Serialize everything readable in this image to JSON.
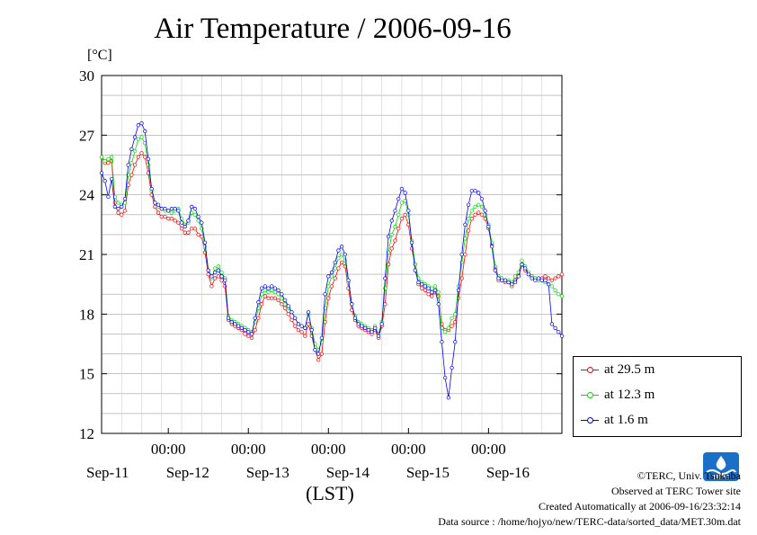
{
  "chart_data": {
    "type": "line",
    "title": "Air Temperature / 2006-09-16",
    "ylabel": "[°C]",
    "xlabel": "(LST)",
    "ylim": [
      12,
      30
    ],
    "y_ticks": [
      12,
      15,
      18,
      21,
      24,
      27,
      30
    ],
    "x_range_hours": [
      0,
      138
    ],
    "x_tick_labels": [
      "00:00",
      "00:00",
      "00:00",
      "00:00",
      "00:00"
    ],
    "x_day_labels": [
      "Sep-11",
      "Sep-12",
      "Sep-13",
      "Sep-14",
      "Sep-15",
      "Sep-16"
    ],
    "grid": true,
    "legend_placement": "bottom-right outside plot",
    "series": [
      {
        "name": "at 29.5 m",
        "color": "#ff0000",
        "x": [
          0,
          1,
          2,
          3,
          4,
          5,
          6,
          7,
          8,
          9,
          10,
          11,
          12,
          13,
          14,
          15,
          16,
          17,
          18,
          19,
          20,
          21,
          22,
          23,
          24,
          25,
          26,
          27,
          28,
          29,
          30,
          31,
          32,
          33,
          34,
          35,
          36,
          37,
          38,
          39,
          40,
          41,
          42,
          43,
          44,
          45,
          46,
          47,
          48,
          49,
          50,
          51,
          52,
          53,
          54,
          55,
          56,
          57,
          58,
          59,
          60,
          61,
          62,
          63,
          64,
          65,
          66,
          67,
          68,
          69,
          70,
          71,
          72,
          73,
          74,
          75,
          76,
          77,
          78,
          79,
          80,
          81,
          82,
          83,
          84,
          85,
          86,
          87,
          88,
          89,
          90,
          91,
          92,
          93,
          94,
          95,
          96,
          97,
          98,
          99,
          100,
          101,
          102,
          103,
          104,
          105,
          106,
          107,
          108,
          109,
          110,
          111,
          112,
          113,
          114,
          115,
          116,
          117,
          118,
          119,
          120,
          121,
          122,
          123,
          124,
          125,
          126,
          127,
          128,
          129,
          130,
          131,
          132,
          133,
          134,
          135,
          136,
          137,
          138
        ],
        "values": [
          25.9,
          25.6,
          25.6,
          25.7,
          23.6,
          23.1,
          23.0,
          23.2,
          24.5,
          25.0,
          25.5,
          25.9,
          26.1,
          25.9,
          25.1,
          24.0,
          23.4,
          23.1,
          22.9,
          22.9,
          22.8,
          22.8,
          22.7,
          22.6,
          22.3,
          22.1,
          22.1,
          22.3,
          22.3,
          22.0,
          21.9,
          21.1,
          20.0,
          19.4,
          19.8,
          19.9,
          19.7,
          19.4,
          17.7,
          17.5,
          17.4,
          17.3,
          17.2,
          17.0,
          16.9,
          16.8,
          17.2,
          17.8,
          18.5,
          18.9,
          18.8,
          18.8,
          18.8,
          18.7,
          18.5,
          18.3,
          18.0,
          17.7,
          17.4,
          17.2,
          17.1,
          16.9,
          17.5,
          16.9,
          16.2,
          15.7,
          16.0,
          17.6,
          18.8,
          19.4,
          19.8,
          20.3,
          20.6,
          20.4,
          19.3,
          18.2,
          17.7,
          17.4,
          17.3,
          17.2,
          17.1,
          17.0,
          17.2,
          16.8,
          17.4,
          18.5,
          20.5,
          21.3,
          21.7,
          22.3,
          22.8,
          23.0,
          22.5,
          21.3,
          20.5,
          19.5,
          19.3,
          19.2,
          19.0,
          18.9,
          19.1,
          18.9,
          17.5,
          17.2,
          17.2,
          17.4,
          17.6,
          18.8,
          19.8,
          21.0,
          22.2,
          22.8,
          23.0,
          23.1,
          23.0,
          22.8,
          22.3,
          21.5,
          20.3,
          19.7,
          19.7,
          19.6,
          19.6,
          19.4,
          19.7,
          20.0,
          20.5,
          20.2,
          20.0,
          19.9,
          19.8,
          19.7,
          19.8,
          19.9,
          19.8,
          19.7,
          19.8,
          19.9,
          20.0
        ]
      },
      {
        "name": "at 12.3 m",
        "color": "#00dd00",
        "x": [
          0,
          1,
          2,
          3,
          4,
          5,
          6,
          7,
          8,
          9,
          10,
          11,
          12,
          13,
          14,
          15,
          16,
          17,
          18,
          19,
          20,
          21,
          22,
          23,
          24,
          25,
          26,
          27,
          28,
          29,
          30,
          31,
          32,
          33,
          34,
          35,
          36,
          37,
          38,
          39,
          40,
          41,
          42,
          43,
          44,
          45,
          46,
          47,
          48,
          49,
          50,
          51,
          52,
          53,
          54,
          55,
          56,
          57,
          58,
          59,
          60,
          61,
          62,
          63,
          64,
          65,
          66,
          67,
          68,
          69,
          70,
          71,
          72,
          73,
          74,
          75,
          76,
          77,
          78,
          79,
          80,
          81,
          82,
          83,
          84,
          85,
          86,
          87,
          88,
          89,
          90,
          91,
          92,
          93,
          94,
          95,
          96,
          97,
          98,
          99,
          100,
          101,
          102,
          103,
          104,
          105,
          106,
          107,
          108,
          109,
          110,
          111,
          112,
          113,
          114,
          115,
          116,
          117,
          118,
          119,
          120,
          121,
          122,
          123,
          124,
          125,
          126,
          127,
          128,
          129,
          130,
          131,
          132,
          133,
          134,
          135,
          136,
          137,
          138
        ],
        "values": [
          25.9,
          25.7,
          25.8,
          25.9,
          23.9,
          23.6,
          23.5,
          23.6,
          25.0,
          25.6,
          26.2,
          26.8,
          26.9,
          26.6,
          25.5,
          24.2,
          23.6,
          23.4,
          23.3,
          23.2,
          23.2,
          23.1,
          23.2,
          23.3,
          22.8,
          22.5,
          22.6,
          23.1,
          23.0,
          22.7,
          22.3,
          21.4,
          20.2,
          19.8,
          20.3,
          20.4,
          20.1,
          19.8,
          17.9,
          17.7,
          17.6,
          17.5,
          17.4,
          17.3,
          17.2,
          17.1,
          17.6,
          18.3,
          19.0,
          19.2,
          19.1,
          19.2,
          19.1,
          19.0,
          18.8,
          18.5,
          18.3,
          18.1,
          17.8,
          17.5,
          17.4,
          17.3,
          18.0,
          17.3,
          16.5,
          16.2,
          16.6,
          18.3,
          19.4,
          19.9,
          20.3,
          20.8,
          21.0,
          20.7,
          19.6,
          18.5,
          17.9,
          17.6,
          17.5,
          17.4,
          17.3,
          17.2,
          17.4,
          17.0,
          17.6,
          19.3,
          21.1,
          22.0,
          22.4,
          23.0,
          23.6,
          23.7,
          23.0,
          21.7,
          20.5,
          19.8,
          19.6,
          19.5,
          19.4,
          19.3,
          19.4,
          19.1,
          17.3,
          17.1,
          17.3,
          17.8,
          18.0,
          19.4,
          20.6,
          21.8,
          22.8,
          23.2,
          23.4,
          23.5,
          23.4,
          23.0,
          22.5,
          21.6,
          20.4,
          19.9,
          19.8,
          19.7,
          19.7,
          19.6,
          19.9,
          20.1,
          20.7,
          20.4,
          20.1,
          19.9,
          19.8,
          19.7,
          19.7,
          19.6,
          19.5,
          19.4,
          19.2,
          19.0,
          18.9
        ]
      },
      {
        "name": "at 1.6 m",
        "color": "#0000ff",
        "x": [
          0,
          1,
          2,
          3,
          4,
          5,
          6,
          7,
          8,
          9,
          10,
          11,
          12,
          13,
          14,
          15,
          16,
          17,
          18,
          19,
          20,
          21,
          22,
          23,
          24,
          25,
          26,
          27,
          28,
          29,
          30,
          31,
          32,
          33,
          34,
          35,
          36,
          37,
          38,
          39,
          40,
          41,
          42,
          43,
          44,
          45,
          46,
          47,
          48,
          49,
          50,
          51,
          52,
          53,
          54,
          55,
          56,
          57,
          58,
          59,
          60,
          61,
          62,
          63,
          64,
          65,
          66,
          67,
          68,
          69,
          70,
          71,
          72,
          73,
          74,
          75,
          76,
          77,
          78,
          79,
          80,
          81,
          82,
          83,
          84,
          85,
          86,
          87,
          88,
          89,
          90,
          91,
          92,
          93,
          94,
          95,
          96,
          97,
          98,
          99,
          100,
          101,
          102,
          103,
          104,
          105,
          106,
          107,
          108,
          109,
          110,
          111,
          112,
          113,
          114,
          115,
          116,
          117,
          118,
          119,
          120,
          121,
          122,
          123,
          124,
          125,
          126,
          127,
          128,
          129,
          130,
          131,
          132,
          133,
          134,
          135,
          136,
          137,
          138
        ],
        "values": [
          25.1,
          24.7,
          23.9,
          24.8,
          23.4,
          23.3,
          23.4,
          23.8,
          25.5,
          26.3,
          26.9,
          27.5,
          27.6,
          27.2,
          25.8,
          24.3,
          23.6,
          23.5,
          23.3,
          23.3,
          23.2,
          23.3,
          23.3,
          23.2,
          22.6,
          22.4,
          22.7,
          23.4,
          23.3,
          22.9,
          22.6,
          21.6,
          20.2,
          19.9,
          20.1,
          20.2,
          19.9,
          19.7,
          17.8,
          17.6,
          17.5,
          17.4,
          17.3,
          17.2,
          17.1,
          17.0,
          17.8,
          18.6,
          19.3,
          19.4,
          19.3,
          19.4,
          19.3,
          19.2,
          19.0,
          18.7,
          18.4,
          18.1,
          17.8,
          17.5,
          17.4,
          17.3,
          18.1,
          17.2,
          16.2,
          16.0,
          16.8,
          19.0,
          19.9,
          20.1,
          20.6,
          21.2,
          21.4,
          21.0,
          19.7,
          18.5,
          17.8,
          17.5,
          17.4,
          17.3,
          17.2,
          17.1,
          17.3,
          16.9,
          17.5,
          19.8,
          21.9,
          22.7,
          23.2,
          23.8,
          24.3,
          24.1,
          23.2,
          21.6,
          20.2,
          19.6,
          19.5,
          19.4,
          19.3,
          19.1,
          19.2,
          18.5,
          16.6,
          14.8,
          13.8,
          15.3,
          16.6,
          19.2,
          21.0,
          22.5,
          23.5,
          24.2,
          24.2,
          24.1,
          23.8,
          23.2,
          22.4,
          21.4,
          20.2,
          19.8,
          19.7,
          19.7,
          19.6,
          19.5,
          19.6,
          19.9,
          20.5,
          20.3,
          20.0,
          19.8,
          19.7,
          19.8,
          19.7,
          19.7,
          19.5,
          17.5,
          17.3,
          17.1,
          16.9
        ]
      }
    ]
  },
  "credits": {
    "copyright": "©TERC, Univ. Tsukuba",
    "site": "Observed at TERC Tower site",
    "created": "Created Automatically at 2006-09-16/23:32:14",
    "source": "Data source : /home/hojyo/new/TERC-data/sorted_data/MET.30m.dat"
  },
  "logo_text": "TERC"
}
